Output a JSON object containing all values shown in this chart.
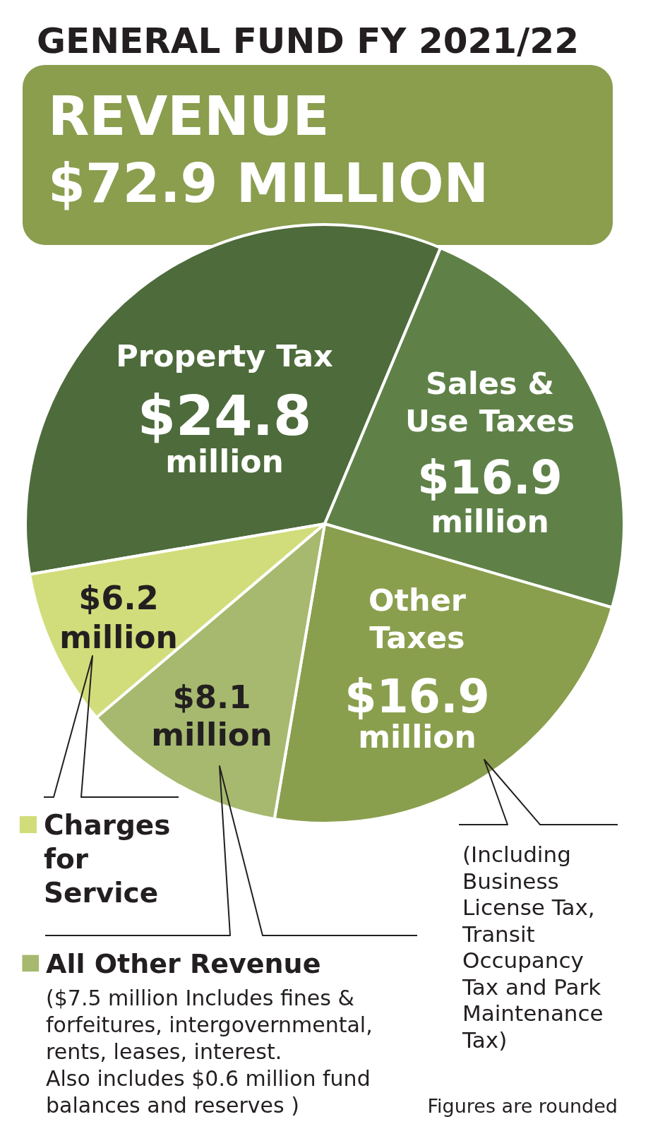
{
  "chart_data": {
    "type": "pie",
    "title": "GENERAL FUND FY 2021/22",
    "subtitle": "REVENUE $72.9 MILLION",
    "categories": [
      "Property Tax",
      "Sales & Use Taxes",
      "Other Taxes",
      "All Other Revenue",
      "Charges for Service"
    ],
    "values": [
      24.8,
      16.9,
      16.9,
      8.1,
      6.2
    ],
    "colors": [
      "#4e6b3b",
      "#5f8148",
      "#8a9f4d",
      "#a6b96f",
      "#d1dd7a"
    ],
    "value_labels": [
      "$24.8 million",
      "$16.9 million",
      "$16.9 million",
      "$8.1 million",
      "$6.2 million"
    ],
    "legend": "bottom left",
    "annotations": [
      "(Including Business License Tax, Transit Occupancy Tax and Park Maintenance Tax)",
      "($7.5 million Includes fines & forfeitures, intergovernmental, rents, leases, interest. Also includes $0.6 million fund balances and reserves )",
      "Figures are rounded"
    ]
  }
}
